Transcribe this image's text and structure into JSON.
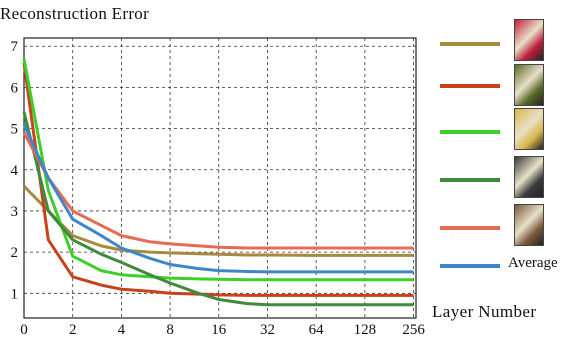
{
  "chart_data": {
    "type": "line",
    "title": "Reconstruction Error",
    "xlabel": "Layer Number",
    "ylabel": "",
    "x": [
      0,
      1,
      2,
      3,
      4,
      6,
      8,
      12,
      16,
      24,
      32,
      64,
      128,
      256
    ],
    "x_tick_labels": [
      "0",
      "2",
      "4",
      "8",
      "16",
      "32",
      "64",
      "128",
      "256"
    ],
    "x_tick_values": [
      0,
      2,
      4,
      8,
      16,
      32,
      64,
      128,
      256
    ],
    "x_scale": "log2-like (0, then doubling)",
    "y_tick_labels": [
      "1",
      "2",
      "3",
      "4",
      "5",
      "6",
      "7"
    ],
    "ylim": [
      0.4,
      7.2
    ],
    "grid": true,
    "legend_position": "right",
    "series": [
      {
        "name": "",
        "color": "#a68a3e",
        "values": [
          3.6,
          3.0,
          2.4,
          2.15,
          2.05,
          2.0,
          1.98,
          1.96,
          1.95,
          1.93,
          1.93,
          1.92,
          1.92,
          1.92
        ]
      },
      {
        "name": "",
        "color": "#c8421a",
        "values": [
          6.6,
          2.3,
          1.4,
          1.2,
          1.1,
          1.05,
          1.0,
          0.98,
          0.96,
          0.95,
          0.95,
          0.95,
          0.95,
          0.95
        ]
      },
      {
        "name": "",
        "color": "#3ecf2a",
        "values": [
          6.7,
          3.5,
          1.9,
          1.55,
          1.45,
          1.4,
          1.37,
          1.35,
          1.34,
          1.33,
          1.33,
          1.33,
          1.33,
          1.33
        ]
      },
      {
        "name": "",
        "color": "#3f8a3c",
        "values": [
          5.4,
          3.0,
          2.3,
          1.95,
          1.75,
          1.45,
          1.25,
          1.0,
          0.85,
          0.75,
          0.72,
          0.72,
          0.72,
          0.72
        ]
      },
      {
        "name": "",
        "color": "#e86a50",
        "values": [
          4.9,
          3.8,
          3.0,
          2.65,
          2.4,
          2.25,
          2.2,
          2.15,
          2.12,
          2.1,
          2.1,
          2.1,
          2.1,
          2.1
        ]
      },
      {
        "name": "Average",
        "color": "#3f86c8",
        "values": [
          5.1,
          3.8,
          2.8,
          2.4,
          2.1,
          1.85,
          1.7,
          1.6,
          1.55,
          1.53,
          1.52,
          1.52,
          1.52,
          1.52
        ]
      }
    ]
  },
  "legend": {
    "average_label": "Average",
    "thumb_icons": [
      "red-flowers-thumbnail",
      "garden-scene-thumbnail",
      "yellow-flowers-vase-thumbnail",
      "kitchen-objects-thumbnail",
      "toys-scene-thumbnail"
    ],
    "thumb_colors": [
      "#c0203a",
      "#5a6a2a",
      "#d8b64a",
      "#3a3a3a",
      "#7a5a3a"
    ]
  }
}
